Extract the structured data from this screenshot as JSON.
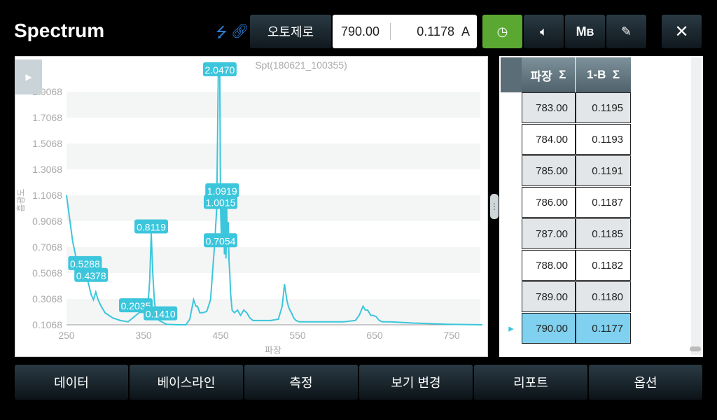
{
  "header": {
    "title": "Spectrum",
    "autozero_label": "오토제로",
    "wavelength": "790.00",
    "absorbance": "0.1178",
    "unit": "A",
    "icons": [
      "usb-icon",
      "link-icon",
      "clock-icon",
      "speaker-icon",
      "mb-icon",
      "edit-icon",
      "close-icon"
    ],
    "accent": "#5aa832"
  },
  "table": {
    "columns": [
      "파장",
      "1-B"
    ],
    "sigma": "Σ",
    "rows": [
      [
        "783.00",
        "0.1195"
      ],
      [
        "784.00",
        "0.1193"
      ],
      [
        "785.00",
        "0.1191"
      ],
      [
        "786.00",
        "0.1187"
      ],
      [
        "787.00",
        "0.1185"
      ],
      [
        "788.00",
        "0.1182"
      ],
      [
        "789.00",
        "0.1180"
      ],
      [
        "790.00",
        "0.1177"
      ]
    ],
    "selected_index": 7,
    "selected_color": "#7fd1ef"
  },
  "bottom_nav": [
    "데이터",
    "베이스라인",
    "측정",
    "보기 변경",
    "리포트",
    "옵션"
  ],
  "chart_data": {
    "type": "line",
    "title": "Spt(180621_100355)",
    "xlabel": "파장",
    "ylabel": "흡광도",
    "xlim": [
      250,
      790
    ],
    "ylim": [
      0.1068,
      2.0
    ],
    "xticks": [
      250,
      350,
      450,
      550,
      650,
      750
    ],
    "yticks": [
      "0.1068",
      "0.3068",
      "0.5068",
      "0.7068",
      "0.9068",
      "1.1068",
      "1.3068",
      "1.5068",
      "1.7068",
      "1.9068"
    ],
    "color": "#3cc6dc",
    "series": [
      {
        "x": [
          250,
          258,
          265,
          272,
          278,
          282,
          285,
          288,
          291,
          295,
          300,
          310,
          320,
          330,
          345,
          355,
          358,
          360,
          362,
          364,
          366,
          370,
          380,
          395,
          405,
          410,
          415,
          418,
          420,
          423,
          427,
          432,
          437,
          442,
          445,
          447,
          449,
          450,
          451,
          452,
          453,
          454,
          455,
          456,
          457,
          458,
          459,
          460,
          461,
          462,
          463,
          465,
          468,
          472,
          476,
          480,
          484,
          488,
          492,
          500,
          515,
          525,
          530,
          533,
          536,
          538,
          540,
          542,
          545,
          548,
          552,
          560,
          580,
          610,
          625,
          630,
          635,
          638,
          641,
          645,
          648,
          652,
          656,
          660,
          665,
          670,
          700,
          750,
          790
        ],
        "y": [
          1.1068,
          0.75,
          0.55,
          0.5288,
          0.4378,
          0.34,
          0.3,
          0.36,
          0.3,
          0.25,
          0.2,
          0.16,
          0.14,
          0.13,
          0.2035,
          0.2,
          0.45,
          0.8119,
          0.5,
          0.3,
          0.2,
          0.141,
          0.11,
          0.1068,
          0.1068,
          0.15,
          0.3,
          0.25,
          0.25,
          0.2,
          0.2,
          0.21,
          0.3,
          0.7054,
          1.0015,
          2.047,
          2.047,
          1.0015,
          0.8,
          1.0919,
          0.8,
          1.0015,
          0.65,
          1.0919,
          0.62,
          1.0015,
          0.7054,
          0.9,
          0.6,
          0.5,
          0.35,
          0.22,
          0.2,
          0.22,
          0.18,
          0.22,
          0.2,
          0.16,
          0.14,
          0.14,
          0.14,
          0.15,
          0.25,
          0.42,
          0.3,
          0.25,
          0.22,
          0.2,
          0.16,
          0.14,
          0.13,
          0.13,
          0.13,
          0.13,
          0.14,
          0.18,
          0.25,
          0.22,
          0.22,
          0.18,
          0.18,
          0.17,
          0.14,
          0.13,
          0.13,
          0.13,
          0.12,
          0.11,
          0.1068
        ]
      }
    ],
    "data_labels": [
      {
        "x": 449,
        "y": 2.047,
        "text": "2.0470"
      },
      {
        "x": 452,
        "y": 1.0919,
        "text": "1.0919"
      },
      {
        "x": 450,
        "y": 1.0015,
        "text": "1.0015"
      },
      {
        "x": 450,
        "y": 0.7054,
        "text": "0.7054"
      },
      {
        "x": 360,
        "y": 0.8119,
        "text": "0.8119"
      },
      {
        "x": 274,
        "y": 0.5288,
        "text": "0.5288"
      },
      {
        "x": 282,
        "y": 0.4378,
        "text": "0.4378"
      },
      {
        "x": 340,
        "y": 0.2035,
        "text": "0.2035"
      },
      {
        "x": 372,
        "y": 0.141,
        "text": "0.1410"
      }
    ]
  }
}
